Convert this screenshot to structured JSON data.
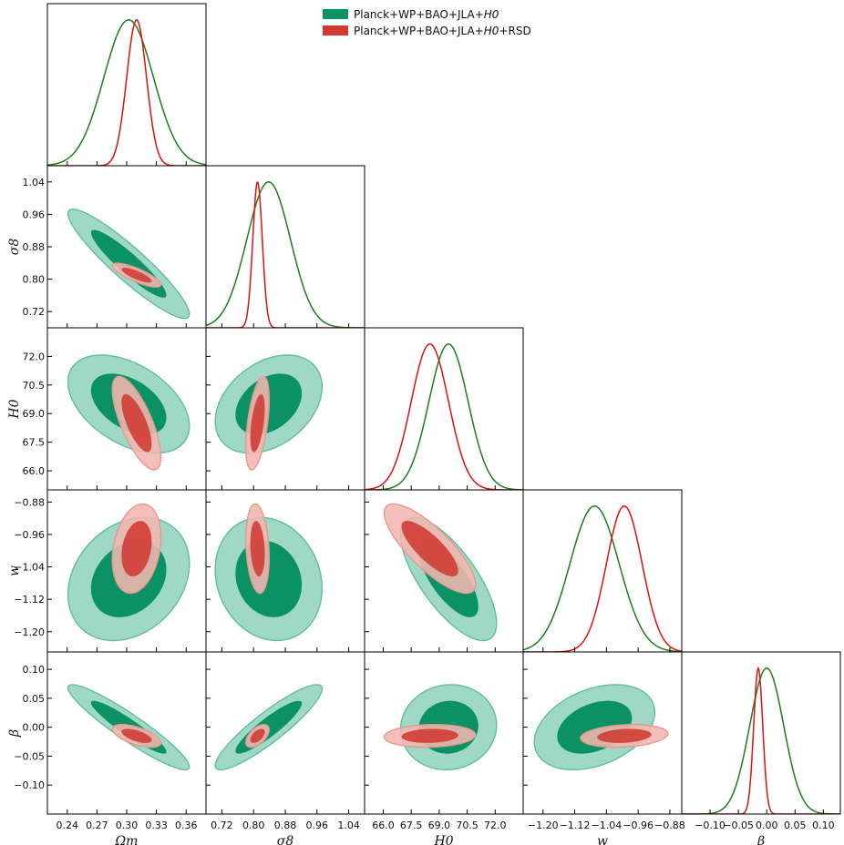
{
  "chart_data": {
    "type": "triangle-corner-plot",
    "parameters": [
      {
        "key": "omega_m",
        "label": "Ωm",
        "range": [
          0.22,
          0.38
        ],
        "ticks": [
          "0.24",
          "0.27",
          "0.30",
          "0.33",
          "0.36"
        ],
        "tick_values": [
          0.24,
          0.27,
          0.3,
          0.33,
          0.36
        ]
      },
      {
        "key": "sigma8",
        "label": "σ8",
        "range": [
          0.68,
          1.08
        ],
        "ticks": [
          "0.72",
          "0.80",
          "0.88",
          "0.96",
          "1.04"
        ],
        "tick_values": [
          0.72,
          0.8,
          0.88,
          0.96,
          1.04
        ]
      },
      {
        "key": "H0",
        "label": "H0",
        "range": [
          65.0,
          73.5
        ],
        "ticks": [
          "66.0",
          "67.5",
          "69.0",
          "70.5",
          "72.0"
        ],
        "tick_values": [
          66.0,
          67.5,
          69.0,
          70.5,
          72.0
        ]
      },
      {
        "key": "w",
        "label": "w",
        "range": [
          -1.25,
          -0.85
        ],
        "ticks": [
          "−1.20",
          "−1.12",
          "−1.04",
          "−0.96",
          "−0.88"
        ],
        "tick_values": [
          -1.2,
          -1.12,
          -1.04,
          -0.96,
          -0.88
        ]
      },
      {
        "key": "beta",
        "label": "β",
        "range": [
          -0.15,
          0.13
        ],
        "ticks": [
          "−0.10",
          "−0.05",
          "0.00",
          "0.05",
          "0.10"
        ],
        "tick_values": [
          -0.1,
          -0.05,
          0.0,
          0.05,
          0.1
        ]
      }
    ],
    "series": [
      {
        "name": "Planck+WP+BAO+JLA+H0",
        "legend_label": "Planck+WP+BAO+JLA+",
        "legend_math": "H0",
        "legend_suffix": "",
        "line_color": "#1a7f1a",
        "fill_dark": "#0a9164",
        "fill_light": "#9fd8c4",
        "mean": [
          0.302,
          0.838,
          69.5,
          -1.07,
          0.0
        ],
        "sigma": [
          0.025,
          0.055,
          1.05,
          0.062,
          0.03
        ],
        "correlation": [
          [
            1.0,
            -0.92,
            -0.45,
            0.25,
            -0.93
          ],
          [
            -0.92,
            1.0,
            0.35,
            -0.15,
            0.9
          ],
          [
            -0.45,
            0.35,
            1.0,
            -0.72,
            0.05
          ],
          [
            0.25,
            -0.15,
            -0.72,
            1.0,
            0.35
          ],
          [
            -0.93,
            0.9,
            0.05,
            0.35,
            1.0
          ]
        ]
      },
      {
        "name": "Planck+WP+BAO+JLA+H0+RSD",
        "legend_label": "Planck+WP+BAO+JLA+",
        "legend_math": "H0",
        "legend_suffix": "+RSD",
        "line_color": "#dd1111",
        "fill_dark": "#d03a32",
        "fill_light": "#f3b6b0",
        "mean": [
          0.31,
          0.81,
          68.5,
          -0.995,
          -0.015
        ],
        "sigma": [
          0.01,
          0.012,
          1.0,
          0.045,
          0.008
        ],
        "correlation": [
          [
            1.0,
            -0.8,
            -0.72,
            0.25,
            -0.6
          ],
          [
            -0.8,
            1.0,
            0.5,
            -0.2,
            0.55
          ],
          [
            -0.72,
            0.5,
            1.0,
            -0.8,
            0.1
          ],
          [
            0.25,
            -0.2,
            -0.8,
            1.0,
            0.2
          ],
          [
            -0.6,
            0.55,
            0.1,
            0.2,
            1.0
          ]
        ]
      }
    ],
    "contour_levels": [
      "68%",
      "95%"
    ],
    "legend_position": "top-center"
  }
}
